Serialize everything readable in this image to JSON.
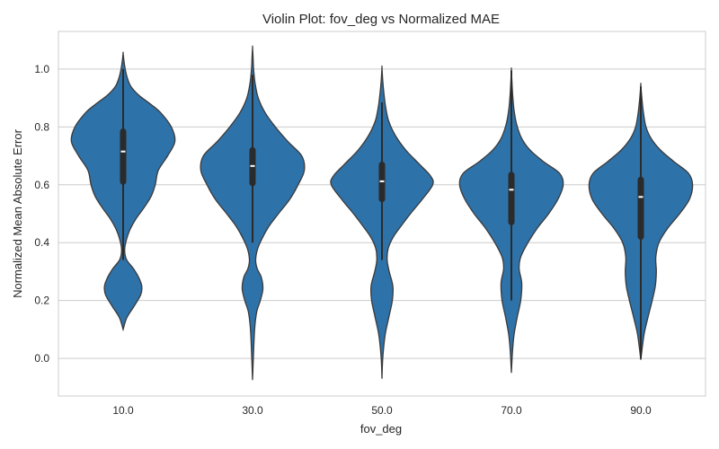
{
  "chart_data": {
    "type": "violin",
    "title": "Violin Plot: fov_deg vs Normalized MAE",
    "xlabel": "fov_deg",
    "ylabel": "Normalized Mean Absolute Error",
    "categories": [
      "10.0",
      "30.0",
      "50.0",
      "70.0",
      "90.0"
    ],
    "ylim": [
      -0.13,
      1.13
    ],
    "yticks": [
      0.0,
      0.2,
      0.4,
      0.6,
      0.8,
      1.0
    ],
    "ytick_labels": [
      "0.0",
      "0.2",
      "0.4",
      "0.6",
      "0.8",
      "1.0"
    ],
    "grid": "horizontal",
    "fill_color": "#2e72aa",
    "edge_color": "#3a3a3a",
    "box_color": "#2b2b2b",
    "median_color": "#ffffff",
    "violins": [
      {
        "category": "10.0",
        "median": 0.715,
        "q1": 0.6,
        "q3": 0.795,
        "whisker_low": 0.34,
        "whisker_high": 1.0,
        "min": 0.1,
        "max": 1.055,
        "profile": [
          [
            0.1,
            0.0
          ],
          [
            0.14,
            0.07
          ],
          [
            0.18,
            0.21
          ],
          [
            0.22,
            0.34
          ],
          [
            0.25,
            0.36
          ],
          [
            0.28,
            0.3
          ],
          [
            0.31,
            0.2
          ],
          [
            0.34,
            0.07
          ],
          [
            0.37,
            0.03
          ],
          [
            0.4,
            0.05
          ],
          [
            0.44,
            0.12
          ],
          [
            0.48,
            0.24
          ],
          [
            0.52,
            0.4
          ],
          [
            0.56,
            0.54
          ],
          [
            0.6,
            0.62
          ],
          [
            0.65,
            0.68
          ],
          [
            0.7,
            0.86
          ],
          [
            0.75,
            1.0
          ],
          [
            0.8,
            0.93
          ],
          [
            0.85,
            0.72
          ],
          [
            0.88,
            0.52
          ],
          [
            0.91,
            0.3
          ],
          [
            0.94,
            0.15
          ],
          [
            0.97,
            0.08
          ],
          [
            1.0,
            0.04
          ],
          [
            1.03,
            0.015
          ],
          [
            1.055,
            0.0
          ]
        ]
      },
      {
        "category": "30.0",
        "median": 0.665,
        "q1": 0.595,
        "q3": 0.73,
        "whisker_low": 0.4,
        "whisker_high": 0.98,
        "min": -0.075,
        "max": 1.075,
        "profile": [
          [
            -0.075,
            0.0
          ],
          [
            0.0,
            0.015
          ],
          [
            0.1,
            0.04
          ],
          [
            0.16,
            0.08
          ],
          [
            0.2,
            0.15
          ],
          [
            0.24,
            0.2
          ],
          [
            0.28,
            0.17
          ],
          [
            0.31,
            0.09
          ],
          [
            0.34,
            0.06
          ],
          [
            0.38,
            0.1
          ],
          [
            0.42,
            0.2
          ],
          [
            0.46,
            0.33
          ],
          [
            0.5,
            0.5
          ],
          [
            0.55,
            0.72
          ],
          [
            0.6,
            0.88
          ],
          [
            0.65,
            1.0
          ],
          [
            0.7,
            0.95
          ],
          [
            0.75,
            0.68
          ],
          [
            0.8,
            0.44
          ],
          [
            0.85,
            0.24
          ],
          [
            0.9,
            0.11
          ],
          [
            0.95,
            0.05
          ],
          [
            1.0,
            0.02
          ],
          [
            1.04,
            0.01
          ],
          [
            1.075,
            0.0
          ]
        ]
      },
      {
        "category": "50.0",
        "median": 0.612,
        "q1": 0.54,
        "q3": 0.68,
        "whisker_low": 0.34,
        "whisker_high": 0.885,
        "min": -0.07,
        "max": 1.005,
        "profile": [
          [
            -0.07,
            0.0
          ],
          [
            0.0,
            0.015
          ],
          [
            0.08,
            0.06
          ],
          [
            0.14,
            0.13
          ],
          [
            0.2,
            0.2
          ],
          [
            0.25,
            0.21
          ],
          [
            0.3,
            0.14
          ],
          [
            0.34,
            0.1
          ],
          [
            0.38,
            0.12
          ],
          [
            0.42,
            0.22
          ],
          [
            0.46,
            0.38
          ],
          [
            0.5,
            0.55
          ],
          [
            0.55,
            0.78
          ],
          [
            0.6,
            0.98
          ],
          [
            0.63,
            0.94
          ],
          [
            0.67,
            0.73
          ],
          [
            0.72,
            0.46
          ],
          [
            0.77,
            0.26
          ],
          [
            0.82,
            0.13
          ],
          [
            0.87,
            0.07
          ],
          [
            0.92,
            0.035
          ],
          [
            0.96,
            0.015
          ],
          [
            1.005,
            0.0
          ]
        ]
      },
      {
        "category": "70.0",
        "median": 0.583,
        "q1": 0.46,
        "q3": 0.645,
        "whisker_low": 0.2,
        "whisker_high": 0.995,
        "min": -0.05,
        "max": 0.998,
        "profile": [
          [
            -0.05,
            0.0
          ],
          [
            0.02,
            0.02
          ],
          [
            0.08,
            0.05
          ],
          [
            0.14,
            0.11
          ],
          [
            0.2,
            0.18
          ],
          [
            0.26,
            0.2
          ],
          [
            0.31,
            0.15
          ],
          [
            0.35,
            0.18
          ],
          [
            0.4,
            0.32
          ],
          [
            0.45,
            0.5
          ],
          [
            0.5,
            0.72
          ],
          [
            0.55,
            0.9
          ],
          [
            0.6,
            1.0
          ],
          [
            0.64,
            0.93
          ],
          [
            0.68,
            0.62
          ],
          [
            0.72,
            0.36
          ],
          [
            0.76,
            0.2
          ],
          [
            0.81,
            0.1
          ],
          [
            0.86,
            0.05
          ],
          [
            0.91,
            0.025
          ],
          [
            0.95,
            0.012
          ],
          [
            0.998,
            0.0
          ]
        ]
      },
      {
        "category": "90.0",
        "median": 0.558,
        "q1": 0.41,
        "q3": 0.628,
        "whisker_low": 0.0,
        "whisker_high": 0.94,
        "min": -0.005,
        "max": 0.945,
        "profile": [
          [
            -0.005,
            0.0
          ],
          [
            0.04,
            0.03
          ],
          [
            0.09,
            0.07
          ],
          [
            0.15,
            0.15
          ],
          [
            0.2,
            0.22
          ],
          [
            0.25,
            0.28
          ],
          [
            0.3,
            0.3
          ],
          [
            0.35,
            0.29
          ],
          [
            0.4,
            0.35
          ],
          [
            0.45,
            0.52
          ],
          [
            0.5,
            0.75
          ],
          [
            0.55,
            0.94
          ],
          [
            0.6,
            1.0
          ],
          [
            0.64,
            0.92
          ],
          [
            0.68,
            0.64
          ],
          [
            0.72,
            0.38
          ],
          [
            0.76,
            0.2
          ],
          [
            0.8,
            0.1
          ],
          [
            0.85,
            0.05
          ],
          [
            0.9,
            0.02
          ],
          [
            0.945,
            0.0
          ]
        ]
      }
    ]
  }
}
